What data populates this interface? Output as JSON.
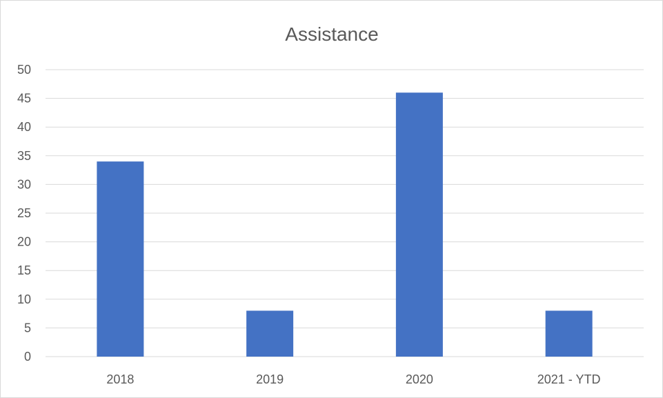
{
  "chart_data": {
    "type": "bar",
    "title": "Assistance",
    "categories": [
      "2018",
      "2019",
      "2020",
      "2021 - YTD"
    ],
    "values": [
      34,
      8,
      46,
      8
    ],
    "ylim": [
      0,
      50
    ],
    "yticks": [
      "0",
      "5",
      "10",
      "15",
      "20",
      "25",
      "30",
      "35",
      "40",
      "45",
      "50"
    ],
    "xlabel": "",
    "ylabel": "",
    "grid": true,
    "legend": "none",
    "bar_color": "#4472C4"
  }
}
